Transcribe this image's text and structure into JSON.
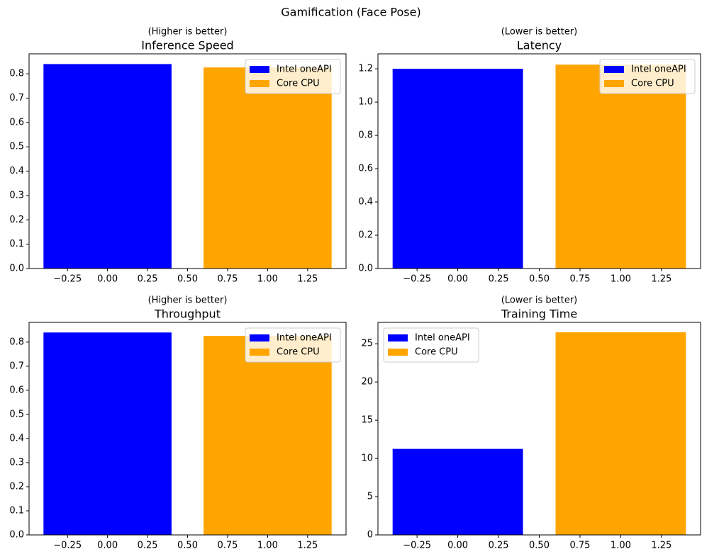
{
  "title": "Gamification (Face Pose)",
  "chart_data": [
    {
      "type": "bar",
      "subtitle": "(Higher is better)",
      "title": "Inference Speed",
      "bar_width": 0.8,
      "legend": "upper right",
      "series": [
        {
          "name": "Intel oneAPI",
          "color": "#0000ff",
          "x": [
            0
          ],
          "values": [
            0.84
          ]
        },
        {
          "name": "Core CPU",
          "color": "#ffa500",
          "x": [
            1
          ],
          "values": [
            0.826
          ]
        }
      ],
      "xlim": [
        -0.49,
        1.49
      ],
      "xticks": [
        {
          "value": -0.25,
          "label": "−0.25"
        },
        {
          "value": 0,
          "label": "0.00"
        },
        0.25,
        {
          "value": 0.5,
          "label": "0.50"
        },
        0.75,
        {
          "value": 1,
          "label": "1.00"
        },
        1.25
      ],
      "ylim": [
        0,
        0.882
      ],
      "yticks": [
        {
          "value": 0,
          "label": "0.0"
        },
        0.1,
        0.2,
        0.3,
        0.4,
        0.5,
        0.6,
        0.7,
        0.8
      ]
    },
    {
      "type": "bar",
      "subtitle": "(Lower is better)",
      "title": "Latency",
      "bar_width": 0.8,
      "legend": "upper right",
      "series": [
        {
          "name": "Intel oneAPI",
          "color": "#0000ff",
          "x": [
            0
          ],
          "values": [
            1.2
          ]
        },
        {
          "name": "Core CPU",
          "color": "#ffa500",
          "x": [
            1
          ],
          "values": [
            1.225
          ]
        }
      ],
      "xlim": [
        -0.49,
        1.49
      ],
      "xticks": [
        {
          "value": -0.25,
          "label": "−0.25"
        },
        {
          "value": 0,
          "label": "0.00"
        },
        0.25,
        {
          "value": 0.5,
          "label": "0.50"
        },
        0.75,
        {
          "value": 1,
          "label": "1.00"
        },
        1.25
      ],
      "ylim": [
        0,
        1.29
      ],
      "yticks": [
        {
          "value": 0,
          "label": "0.0"
        },
        0.2,
        0.4,
        0.6,
        0.8,
        {
          "value": 1,
          "label": "1.0"
        },
        1.2
      ]
    },
    {
      "type": "bar",
      "subtitle": "(Higher is better)",
      "title": "Throughput",
      "bar_width": 0.8,
      "legend": "upper right",
      "series": [
        {
          "name": "Intel oneAPI",
          "color": "#0000ff",
          "x": [
            0
          ],
          "values": [
            0.84
          ]
        },
        {
          "name": "Core CPU",
          "color": "#ffa500",
          "x": [
            1
          ],
          "values": [
            0.826
          ]
        }
      ],
      "xlim": [
        -0.49,
        1.49
      ],
      "xticks": [
        {
          "value": -0.25,
          "label": "−0.25"
        },
        {
          "value": 0,
          "label": "0.00"
        },
        0.25,
        {
          "value": 0.5,
          "label": "0.50"
        },
        0.75,
        {
          "value": 1,
          "label": "1.00"
        },
        1.25
      ],
      "ylim": [
        0,
        0.882
      ],
      "yticks": [
        {
          "value": 0,
          "label": "0.0"
        },
        0.1,
        0.2,
        0.3,
        0.4,
        0.5,
        0.6,
        0.7,
        0.8
      ]
    },
    {
      "type": "bar",
      "subtitle": "(Lower is better)",
      "title": "Training Time",
      "bar_width": 0.8,
      "legend": "upper left",
      "series": [
        {
          "name": "Intel oneAPI",
          "color": "#0000ff",
          "x": [
            0
          ],
          "values": [
            11.25
          ]
        },
        {
          "name": "Core CPU",
          "color": "#ffa500",
          "x": [
            1
          ],
          "values": [
            26.5
          ]
        }
      ],
      "xlim": [
        -0.49,
        1.49
      ],
      "xticks": [
        {
          "value": -0.25,
          "label": "−0.25"
        },
        {
          "value": 0,
          "label": "0.00"
        },
        0.25,
        {
          "value": 0.5,
          "label": "0.50"
        },
        0.75,
        {
          "value": 1,
          "label": "1.00"
        },
        1.25
      ],
      "ylim": [
        0,
        27.8
      ],
      "yticks": [
        0,
        5,
        10,
        15,
        20,
        25
      ]
    }
  ]
}
